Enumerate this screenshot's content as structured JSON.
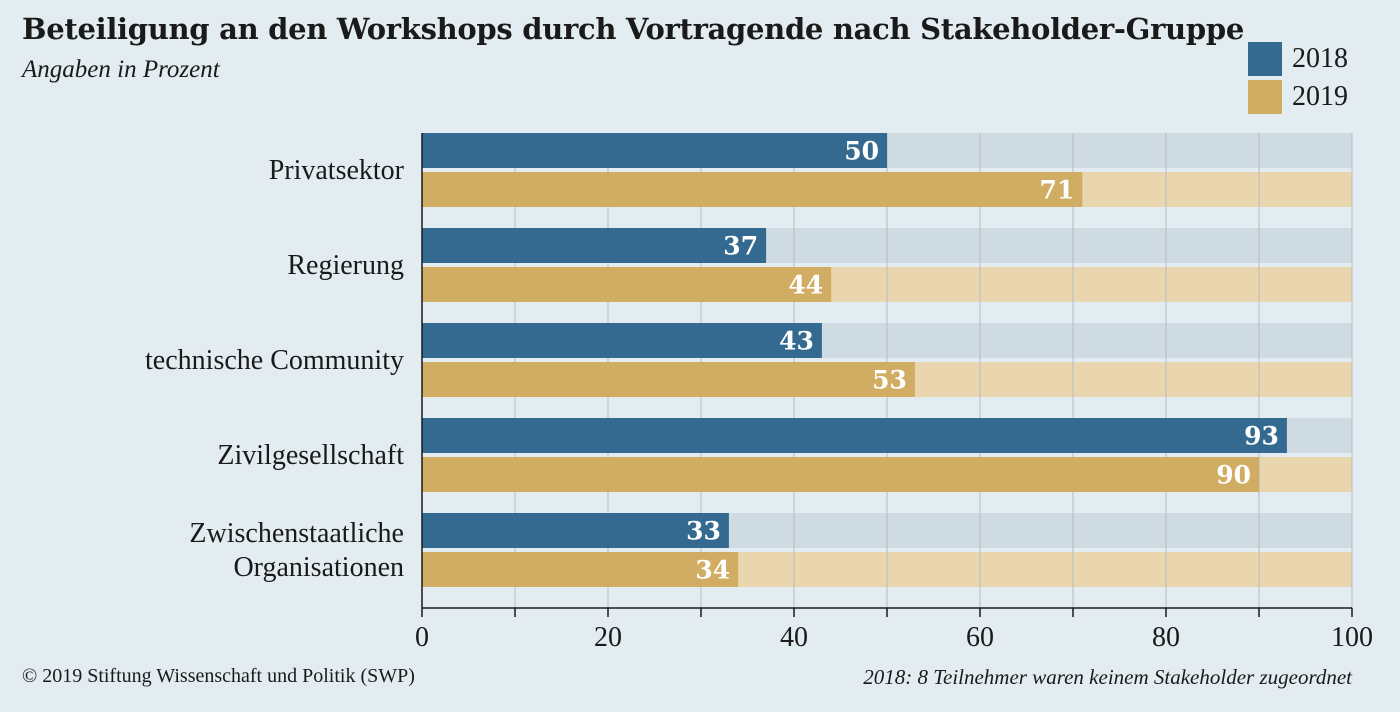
{
  "chart_data": {
    "type": "bar",
    "orientation": "horizontal",
    "title": "Beteiligung an den Workshops durch Vortragende nach Stakeholder-Gruppe",
    "subtitle": "Angaben in Prozent",
    "categories": [
      [
        "Privatsektor"
      ],
      [
        "Regierung"
      ],
      [
        "technische Community"
      ],
      [
        "Zivilgesellschaft"
      ],
      [
        "Zwischenstaatliche",
        "Organisationen"
      ]
    ],
    "series": [
      {
        "name": "2018",
        "color": "#346a90",
        "track_color": "#cfdbe3",
        "values": [
          50,
          37,
          43,
          93,
          33
        ]
      },
      {
        "name": "2019",
        "color": "#d0ad62",
        "track_color": "#ead6ae",
        "values": [
          71,
          44,
          53,
          90,
          34
        ]
      }
    ],
    "xlim": [
      0,
      100
    ],
    "xticks": [
      0,
      20,
      40,
      60,
      80,
      100
    ],
    "grid": true,
    "legend_position": "top-right"
  },
  "footer": {
    "credit": "© 2019 Stiftung Wissenschaft und Politik (SWP)",
    "note": "2018: 8 Teilnehmer waren keinem Stakeholder zugeordnet"
  }
}
